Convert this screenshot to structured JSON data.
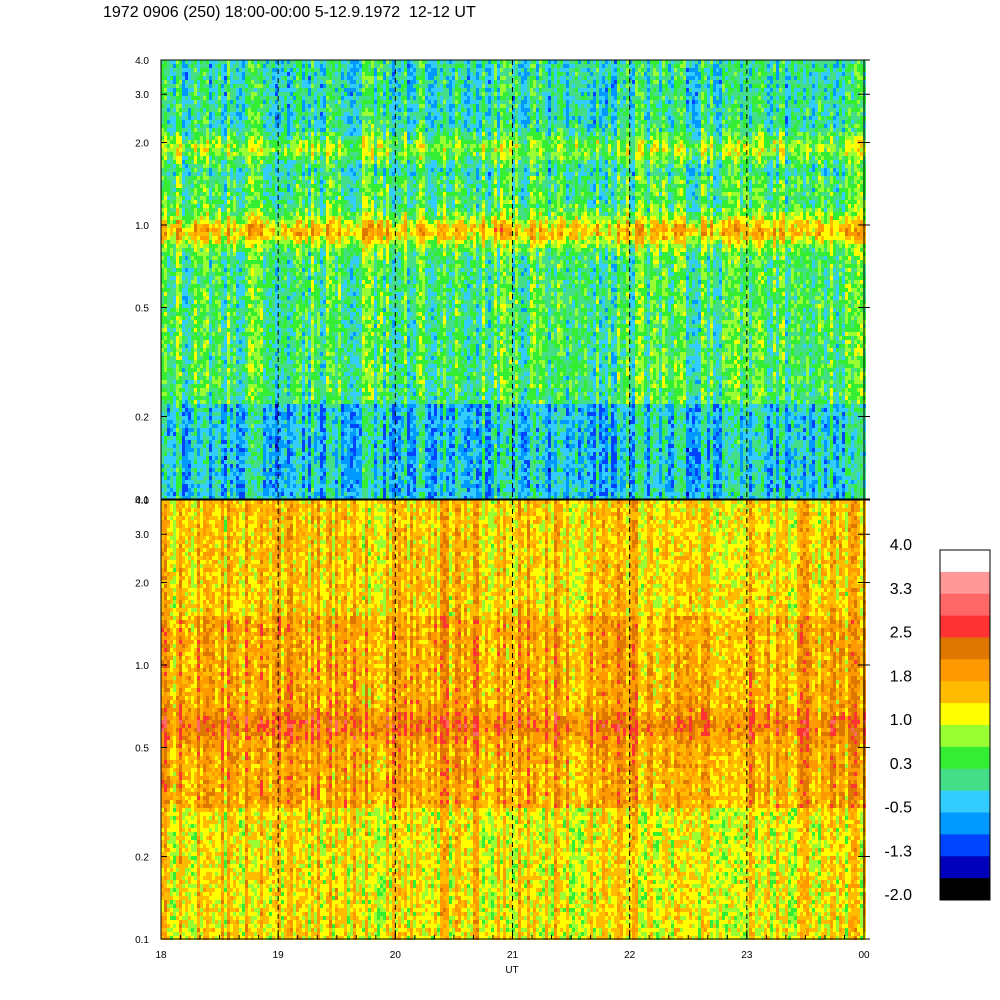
{
  "title": "1972 0906 (250) 18:00-00:00 5-12.9.1972  12-12 UT",
  "chart_data": {
    "type": "heatmap",
    "xlabel": "UT",
    "x_ticks": [
      "18",
      "19",
      "20",
      "21",
      "22",
      "23",
      "00"
    ],
    "x_range": [
      18,
      24
    ],
    "y_scale": "log",
    "y_range": [
      0.1,
      4.0
    ],
    "y_ticks": [
      "0.1",
      "0.2",
      "0.5",
      "1.0",
      "2.0",
      "3.0",
      "4.0"
    ],
    "hour_lines": [
      "19",
      "20",
      "21",
      "22",
      "23"
    ],
    "panels": [
      {
        "name": "upper",
        "features": [
          {
            "freq": 0.95,
            "level": 1.6
          },
          {
            "freq": 1.9,
            "level": 1.1
          }
        ],
        "baseline_level": 0.3
      },
      {
        "name": "lower",
        "features": [
          {
            "freq": 0.6,
            "level": 2.3
          }
        ],
        "baseline_level": 1.8
      }
    ],
    "colorbar": {
      "labels": [
        "4.0",
        "3.3",
        "2.5",
        "1.8",
        "1.0",
        "0.3",
        "-0.5",
        "-1.3",
        "-2.0"
      ],
      "colors": [
        "#ffffff",
        "#ff9999",
        "#ff6666",
        "#ff3333",
        "#dd7700",
        "#ff9900",
        "#ffbb00",
        "#ffff00",
        "#99ff33",
        "#33ee33",
        "#44dd88",
        "#33ccff",
        "#0099ff",
        "#0044ff",
        "#0000bb",
        "#000000"
      ]
    }
  }
}
